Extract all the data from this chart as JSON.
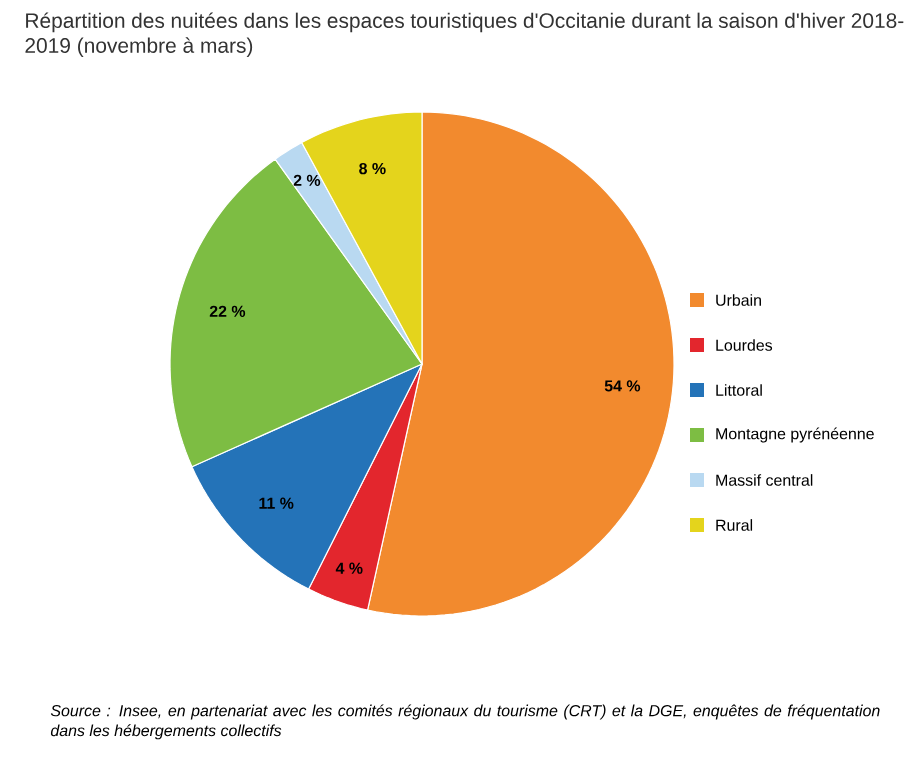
{
  "chart_data": {
    "type": "pie",
    "title": "Répartition des nuitées dans les espaces touristiques d'Occitanie durant la saison d'hiver 2018-2019 (novembre à mars)",
    "categories": [
      "Urbain",
      "Lourdes",
      "Littoral",
      "Montagne pyrénéenne",
      "Massif central",
      "Rural"
    ],
    "values": [
      54,
      4,
      11,
      22,
      2,
      8
    ],
    "value_labels": [
      "54 %",
      "4 %",
      "11 %",
      "22 %",
      "2 %",
      "8 %"
    ],
    "colors": [
      "#f28a2e",
      "#e3262d",
      "#2473b8",
      "#7dbd43",
      "#b9d9f1",
      "#e4d41c"
    ],
    "legend": "right",
    "annotations": [
      "Source : Insee, en partenariat avec les comités régionaux du tourisme (CRT) et la DGE, enquêtes de fréquentation dans les hébergements collectifs"
    ]
  }
}
